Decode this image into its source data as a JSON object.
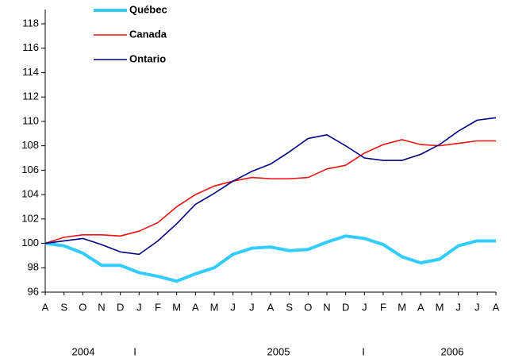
{
  "chart_data": {
    "type": "line",
    "categories": [
      "A",
      "S",
      "O",
      "N",
      "D",
      "J",
      "F",
      "M",
      "A",
      "M",
      "J",
      "J",
      "A",
      "S",
      "O",
      "N",
      "D",
      "J",
      "F",
      "M",
      "A",
      "M",
      "J",
      "J",
      "A"
    ],
    "series": [
      {
        "name": "Québec",
        "color": "#33ccff",
        "values": [
          100,
          99.8,
          99.2,
          98.2,
          98.2,
          97.6,
          97.3,
          96.9,
          97.5,
          98.0,
          99.1,
          99.6,
          99.7,
          99.4,
          99.5,
          100.1,
          100.6,
          100.4,
          99.9,
          98.9,
          98.4,
          98.7,
          99.8,
          100.2,
          100.2
        ]
      },
      {
        "name": "Canada",
        "color": "#ee1111",
        "values": [
          100,
          100.5,
          100.7,
          100.7,
          100.6,
          101.0,
          101.7,
          103.0,
          104.0,
          104.7,
          105.1,
          105.4,
          105.3,
          105.3,
          105.4,
          106.1,
          106.4,
          107.4,
          108.1,
          108.5,
          108.1,
          108.0,
          108.2,
          108.4,
          108.4
        ]
      },
      {
        "name": "Ontario",
        "color": "#000080",
        "values": [
          100,
          100.2,
          100.4,
          99.9,
          99.3,
          99.1,
          100.2,
          101.6,
          103.2,
          104.1,
          105.1,
          105.9,
          106.5,
          107.5,
          108.6,
          108.9,
          108.0,
          107.0,
          106.8,
          106.8,
          107.3,
          108.1,
          109.2,
          110.1,
          110.3
        ]
      }
    ],
    "ylim": [
      96,
      118
    ],
    "yticks": [
      96,
      98,
      100,
      102,
      104,
      106,
      108,
      110,
      112,
      114,
      116,
      118
    ],
    "year_labels": [
      "2004",
      "I",
      "2005",
      "I",
      "2006"
    ],
    "grid": false
  }
}
